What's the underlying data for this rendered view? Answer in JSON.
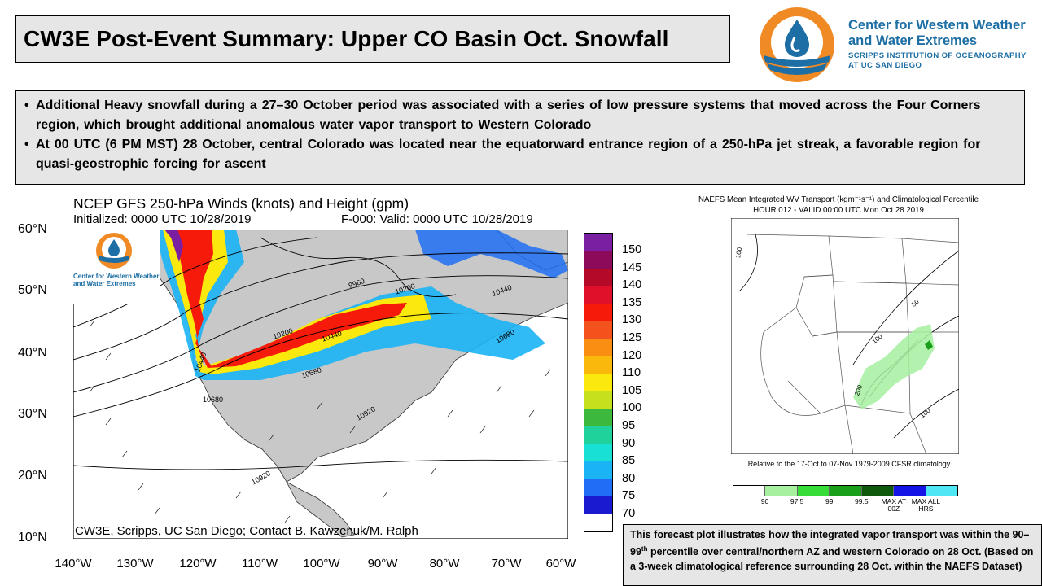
{
  "header": {
    "title": "CW3E Post-Event Summary: Upper CO Basin Oct. Snowfall"
  },
  "logo": {
    "icon": "cw3e-water-drop-logo",
    "name_line1": "Center for Western Weather",
    "name_line2": "and Water Extremes",
    "inst_line1": "SCRIPPS INSTITUTION OF OCEANOGRAPHY",
    "inst_line2": "AT UC SAN DIEGO"
  },
  "bullets": [
    "Additional Heavy snowfall during a 27–30 October period was associated with a series of low pressure systems that moved across the Four Corners region, which brought additional anomalous water vapor transport to Western Colorado",
    "At 00 UTC (6 PM MST) 28 October, central Colorado was located near the equatorward entrance region of a 250-hPa jet streak, a favorable region for quasi-geostrophic forcing for ascent"
  ],
  "gfs_plot": {
    "title": "NCEP GFS 250-hPa Winds (knots) and Height (gpm)",
    "initialized": "Initialized: 0000 UTC 10/28/2019",
    "valid": "F-000: Valid: 0000 UTC 10/28/2019",
    "credit": "CW3E, Scripps, UC San Diego; Contact B. Kawzenuk/M. Ralph",
    "inset_logo_line1": "Center for Western Weather",
    "inset_logo_line2": "and Water Extremes",
    "lat_labels": [
      "60°N",
      "50°N",
      "40°N",
      "30°N",
      "20°N",
      "10°N"
    ],
    "lon_labels": [
      "140°W",
      "130°W",
      "120°W",
      "110°W",
      "100°W",
      "90°W",
      "80°W",
      "70°W",
      "60°W"
    ],
    "contour_labels": [
      "9960",
      "10200",
      "10200",
      "10440",
      "10440",
      "10440",
      "10680",
      "10680",
      "10680",
      "10920",
      "10920"
    ],
    "colorbar": {
      "labels": [
        "150",
        "145",
        "140",
        "135",
        "130",
        "125",
        "120",
        "110",
        "105",
        "100",
        "95",
        "90",
        "85",
        "80",
        "75",
        "70"
      ],
      "colors": [
        "#7a1fa2",
        "#8b0a5a",
        "#b40a28",
        "#e0102a",
        "#f51a0a",
        "#f4521c",
        "#f98e12",
        "#fbb80c",
        "#fbe80c",
        "#c7e01e",
        "#3cb83c",
        "#1fd19a",
        "#18e0d5",
        "#1ab4f5",
        "#1f6ef5",
        "#1a1ad0",
        "#ffffff"
      ]
    }
  },
  "naefs_plot": {
    "title_line1": "NAEFS Mean Integrated WV Transport (kgm⁻¹s⁻¹) and Climatological Percentile",
    "title_line2": "HOUR 012 - VALID 00:00 UTC Mon Oct 28 2019",
    "note": "Relative to the 17-Oct to 07-Nov 1979-2009 CFSR climatology",
    "contour_labels": [
      "100",
      "50",
      "100",
      "200",
      "100"
    ],
    "legend": [
      {
        "label": "90",
        "color": "#ffffff"
      },
      {
        "label": "97.5",
        "color": "#a6f0a0"
      },
      {
        "label": "99",
        "color": "#38dc38"
      },
      {
        "label": "99.5",
        "color": "#1a9f1a"
      },
      {
        "label": "MAX AT 00Z",
        "color": "#0d5a0d"
      },
      {
        "label": "MAX ALL HRS",
        "color": "#1414e6"
      },
      {
        "label": "",
        "color": "#4fe6f5"
      }
    ]
  },
  "caption": {
    "text_before_sup": "This forecast plot illustrates how the integrated vapor transport was within the 90–99",
    "sup": "th",
    "text_after_sup": " percentile over central/northern AZ and western Colorado on 28 Oct. (Based on a 3-week climatological reference surrounding 28 Oct. within the NAEFS Dataset)"
  }
}
